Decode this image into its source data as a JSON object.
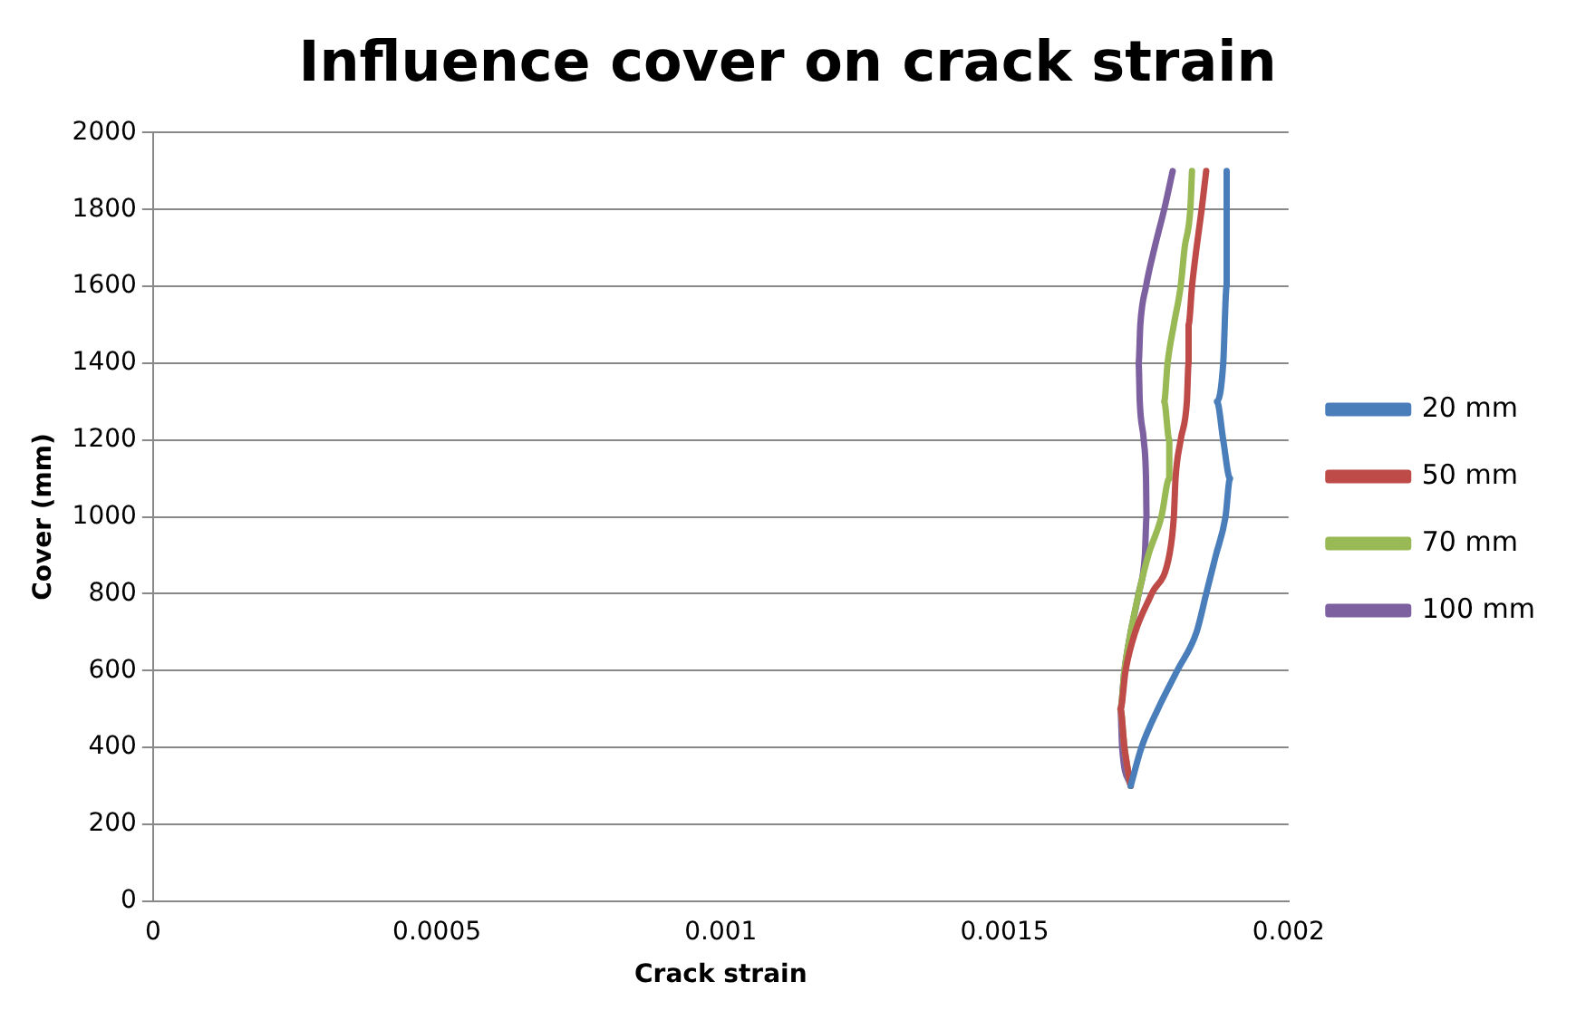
{
  "chart_data": {
    "type": "line",
    "title": "Influence cover on crack strain",
    "xlabel": "Crack strain",
    "ylabel": "Cover (mm)",
    "xlim": [
      0,
      0.002
    ],
    "xticks": [
      0,
      0.0005,
      0.001,
      0.0015,
      0.002
    ],
    "ylim": [
      0,
      2000
    ],
    "yticks": [
      0,
      200,
      400,
      600,
      800,
      1000,
      1200,
      1400,
      1600,
      1800,
      2000
    ],
    "grid": "y",
    "legend": "right",
    "marker": "none",
    "line_style": "solid",
    "series": [
      {
        "name": "20 mm",
        "color": "#4a7ebb",
        "x": [
          0.001891,
          0.001891,
          0.001891,
          0.001885,
          0.001874,
          0.001885,
          0.001897,
          0.001889,
          0.001872,
          0.001855,
          0.001838,
          0.001804,
          0.00177,
          0.001741,
          0.001722
        ],
        "values": [
          1900,
          1800,
          1600,
          1400,
          1300,
          1200,
          1100,
          1000,
          900,
          800,
          700,
          600,
          500,
          400,
          300
        ]
      },
      {
        "name": "50 mm",
        "color": "#be4b48",
        "x": [
          0.001855,
          0.001847,
          0.001838,
          0.00183,
          0.001824,
          0.001824,
          0.001821,
          0.00181,
          0.001801,
          0.001798,
          0.00179,
          0.001759,
          0.00173,
          0.001713,
          0.001704,
          0.001711,
          0.001722
        ],
        "values": [
          1900,
          1800,
          1700,
          1600,
          1500,
          1400,
          1300,
          1200,
          1100,
          1000,
          900,
          800,
          700,
          600,
          500,
          400,
          300
        ]
      },
      {
        "name": "70 mm",
        "color": "#98b954",
        "x": [
          0.00183,
          0.001827,
          0.001817,
          0.00181,
          0.001798,
          0.001787,
          0.001781,
          0.00179,
          0.00179,
          0.001776,
          0.001753,
          0.001736,
          0.001722,
          0.001711,
          0.001704,
          0.001711,
          0.001722
        ],
        "values": [
          1900,
          1800,
          1700,
          1600,
          1500,
          1400,
          1300,
          1200,
          1100,
          1000,
          900,
          800,
          700,
          600,
          500,
          400,
          300
        ]
      },
      {
        "name": "100 mm",
        "color": "#7d60a0",
        "x": [
          0.001796,
          0.001781,
          0.001764,
          0.001749,
          0.001739,
          0.001736,
          0.001738,
          0.001745,
          0.001749,
          0.00175,
          0.001747,
          0.001736,
          0.001722,
          0.001711,
          0.001704,
          0.001707,
          0.001722
        ],
        "values": [
          1900,
          1800,
          1700,
          1600,
          1500,
          1400,
          1300,
          1200,
          1100,
          1000,
          900,
          800,
          700,
          600,
          500,
          400,
          300
        ]
      }
    ]
  }
}
